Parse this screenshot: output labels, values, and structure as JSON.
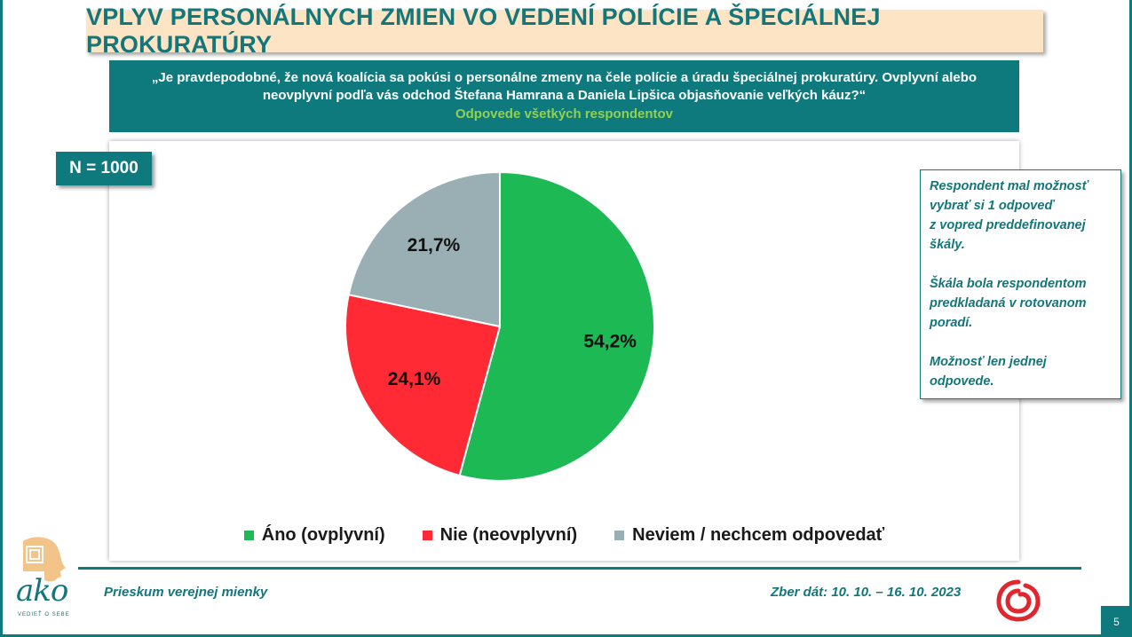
{
  "header": {
    "title": "VPLYV PERSONÁLNYCH ZMIEN VO VEDENÍ POLÍCIE A ŠPECIÁLNEJ PROKURATÚRY"
  },
  "question": {
    "line1": "„Je pravdepodobné, že nová koalícia sa pokúsi o personálne zmeny na čele polície a úradu špeciálnej prokuratúry. Ovplyvní alebo",
    "line2": "neovplyvní podľa vás odchod Štefana Hamrana a Daniela Lipšica objasňovanie veľkých káuz?“",
    "sub": "Odpovede všetkých respondentov"
  },
  "sample": {
    "label": "N = 1000"
  },
  "note": {
    "p1": "Respondent mal možnosť\nvybrať si 1 odpoveď\nz vopred preddefinovanej\nškály.",
    "p2": "Škála bola respondentom\npredkladaná v rotovanom\nporadí.",
    "p3": "Možnosť len jednej\nodpovede."
  },
  "footer": {
    "left": "Prieskum verejnej mienky",
    "right": "Zber dát: 10. 10. – 16. 10. 2023",
    "page": "5"
  },
  "logo": {
    "brand": "ako",
    "tagline": "VEDIEŤ O SEBE"
  },
  "colors": {
    "teal": "#0f7a7d",
    "ano": "#1db954",
    "nie": "#ff2a34",
    "neviem": "#9aafb4"
  },
  "chart_data": {
    "type": "pie",
    "title": "",
    "categories": [
      "Áno (ovplyvní)",
      "Nie (neovplyvní)",
      "Neviem / nechcem odpovedať"
    ],
    "values": [
      54.2,
      24.1,
      21.7
    ],
    "value_labels": [
      "54,2%",
      "24,1%",
      "21,7%"
    ],
    "colors": [
      "#1db954",
      "#ff2a34",
      "#9aafb4"
    ],
    "start": "12 o'clock",
    "direction": "clockwise",
    "legend_position": "bottom"
  }
}
